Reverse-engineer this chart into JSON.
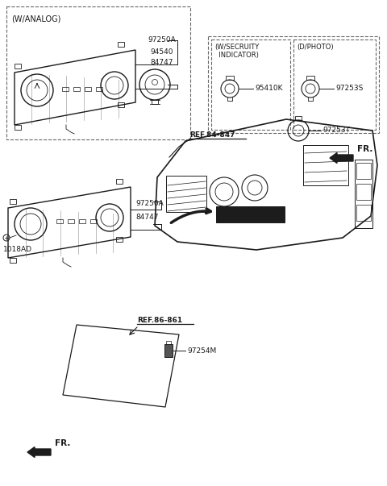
{
  "bg_color": "#ffffff",
  "line_color": "#1a1a1a",
  "dash_color": "#666666",
  "labels": {
    "w_analog": "(W/ANALOG)",
    "w_security_line1": "(W/SECRUITY",
    "w_security_line2": "  INDICATOR)",
    "d_photo": "(D/PHOTO)",
    "ref_84_847": "REF.84-847",
    "ref_86_861": "REF.86-861",
    "fr_upper": "FR.",
    "fr_lower": "FR.",
    "p97250A_top": "97250A",
    "p94540": "94540",
    "p84747_top": "84747",
    "p84747_bot": "84747",
    "p97250A_bot": "97250A",
    "p95410K": "95410K",
    "p97253S": "97253S",
    "p97253T": "97253T",
    "p97254M": "97254M",
    "p1018AD": "1018AD"
  },
  "fss": 6.5,
  "fs": 7.5
}
